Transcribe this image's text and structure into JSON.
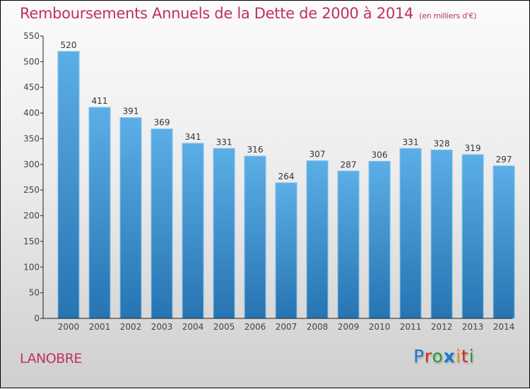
{
  "header": {
    "title": "Remboursements Annuels de la Dette de 2000 à 2014",
    "subtitle": "(en milliers d'€)"
  },
  "footer": {
    "town": "LANOBRE",
    "logo": {
      "letters": [
        "P",
        "r",
        "o",
        "x",
        "i",
        "t",
        "i"
      ],
      "colors": [
        "#1a7ad4",
        "#d4261a",
        "#2e9a2e",
        "#1a7ad4",
        "#f08c00",
        "#d4261a",
        "#2e9a2e"
      ]
    }
  },
  "chart_data": {
    "type": "bar",
    "title": "Remboursements Annuels de la Dette de 2000 à 2014",
    "subtitle": "(en milliers d'€)",
    "xlabel": "",
    "ylabel": "",
    "categories": [
      "2000",
      "2001",
      "2002",
      "2003",
      "2004",
      "2005",
      "2006",
      "2007",
      "2008",
      "2009",
      "2010",
      "2011",
      "2012",
      "2013",
      "2014"
    ],
    "values": [
      520,
      411,
      391,
      369,
      341,
      331,
      316,
      264,
      307,
      287,
      306,
      331,
      328,
      319,
      297
    ],
    "ylim": [
      0,
      550
    ],
    "yticks": [
      0,
      50,
      100,
      150,
      200,
      250,
      300,
      350,
      400,
      450,
      500,
      550
    ],
    "grid": false,
    "legend": "none",
    "bar_color": "#4a9fdf"
  }
}
